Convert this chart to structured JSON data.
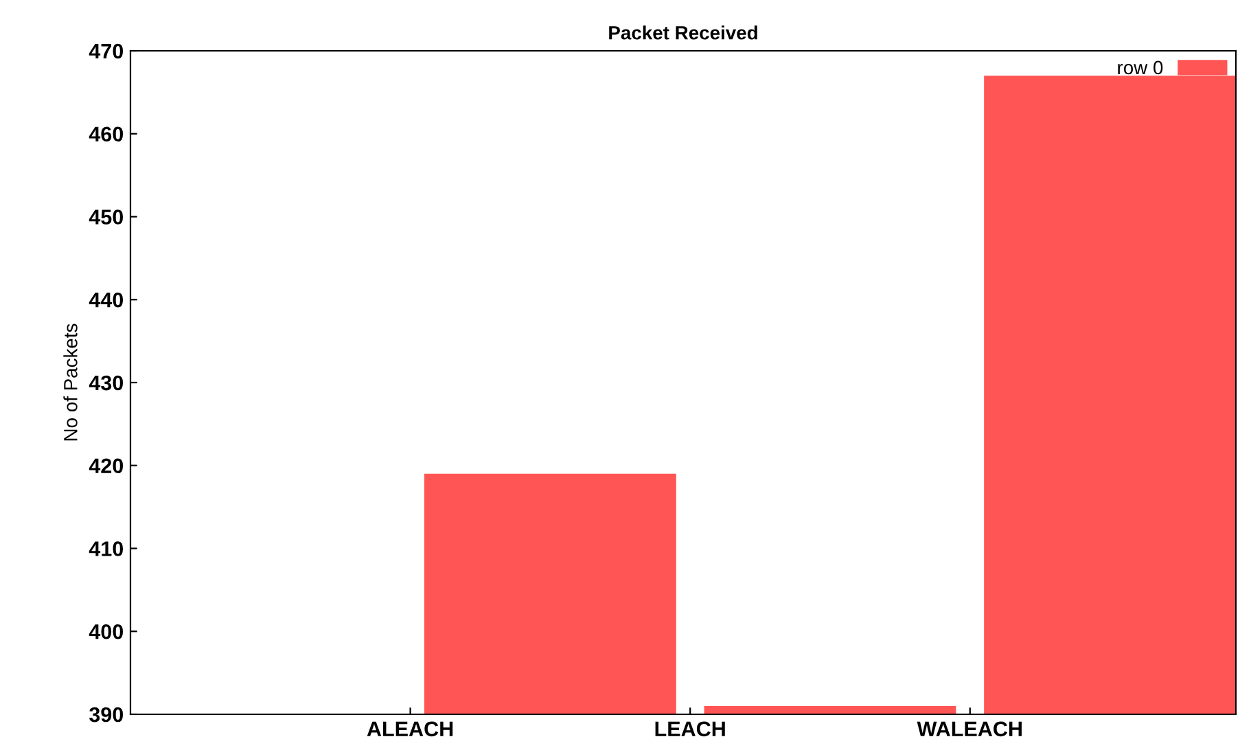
{
  "chart_data": {
    "type": "bar",
    "title": "Packet Received",
    "ylabel": "No of Packets",
    "categories": [
      "ALEACH",
      "LEACH",
      "WALEACH"
    ],
    "series": [
      {
        "name": "row 0",
        "color": "#ff5555",
        "values": [
          419,
          391,
          467
        ]
      }
    ],
    "ylim": [
      390,
      470
    ],
    "yticks": [
      390,
      400,
      410,
      420,
      430,
      440,
      450,
      460,
      470
    ],
    "grid": false,
    "legend": "top right"
  }
}
